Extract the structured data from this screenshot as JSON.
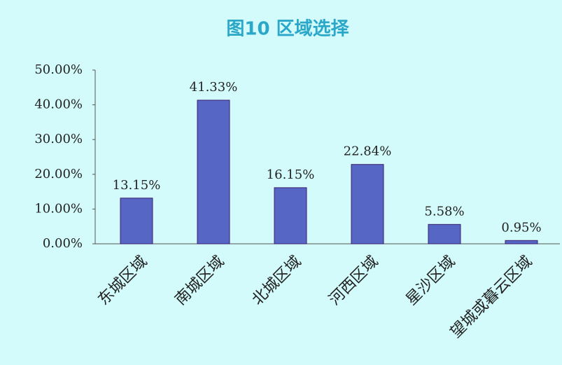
{
  "chart_data": {
    "type": "bar",
    "title": "图10 区域选择",
    "categories": [
      "东城区域",
      "南城区域",
      "北城区域",
      "河西区域",
      "星沙区域",
      "望城或暮云区域"
    ],
    "values": [
      13.15,
      41.33,
      16.15,
      22.84,
      5.58,
      0.95
    ],
    "value_labels": [
      "13.15%",
      "41.33%",
      "16.15%",
      "22.84%",
      "5.58%",
      "0.95%"
    ],
    "color": "#5566c4",
    "ylim": [
      0,
      50
    ],
    "yticks": [
      {
        "value": 0,
        "label": "0.00%"
      },
      {
        "value": 10,
        "label": "10.00%"
      },
      {
        "value": 20,
        "label": "20.00%"
      },
      {
        "value": 30,
        "label": "30.00%"
      },
      {
        "value": 40,
        "label": "40.00%"
      },
      {
        "value": 50,
        "label": "50.00%"
      }
    ],
    "grid": false
  }
}
